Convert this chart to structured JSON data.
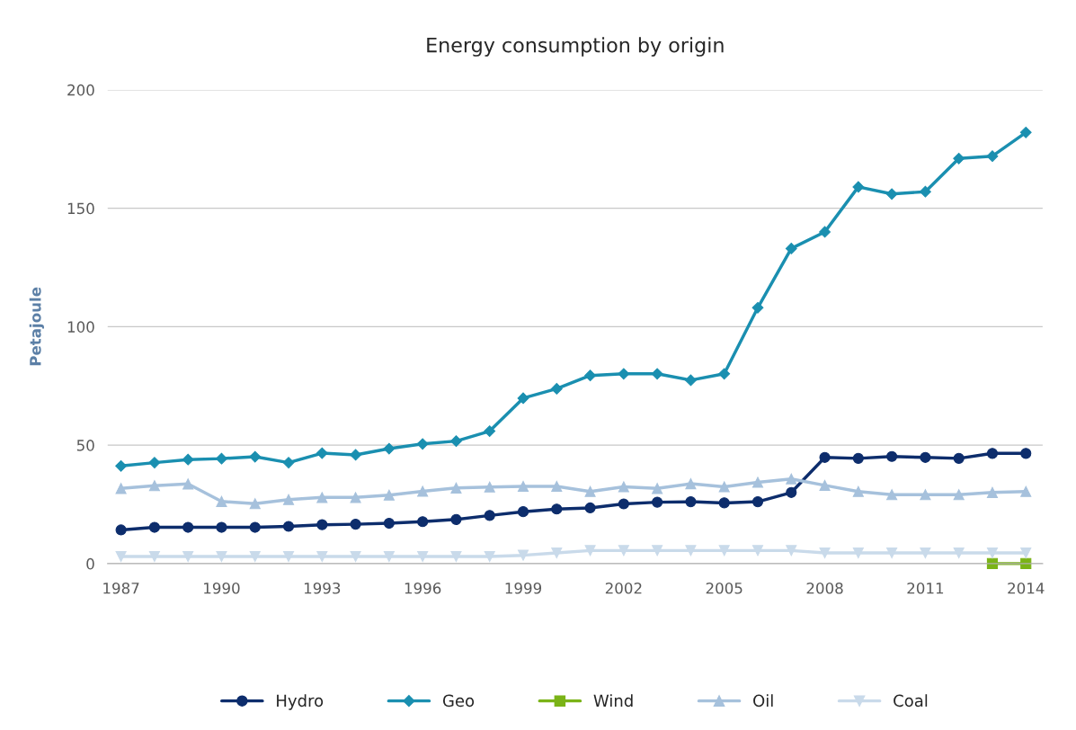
{
  "chart_data": {
    "type": "line",
    "title": "Energy consumption by origin",
    "ylabel": "Petajoule",
    "x": [
      1987,
      1988,
      1989,
      1990,
      1991,
      1992,
      1993,
      1994,
      1995,
      1996,
      1997,
      1998,
      1999,
      2000,
      2001,
      2002,
      2003,
      2004,
      2005,
      2006,
      2007,
      2008,
      2009,
      2010,
      2011,
      2012,
      2013,
      2014
    ],
    "xlim": [
      1986.6,
      2014.5
    ],
    "xticks": [
      1987,
      1990,
      1993,
      1996,
      1999,
      2002,
      2005,
      2008,
      2011,
      2014
    ],
    "ylim": [
      0,
      200
    ],
    "yticks": [
      0,
      50,
      100,
      150,
      200
    ],
    "grid": "y",
    "legend": "bottom",
    "series": [
      {
        "name": "Hydro",
        "color": "#0d2d6c",
        "marker": "circle",
        "values": [
          14.2,
          15.3,
          15.3,
          15.3,
          15.3,
          15.7,
          16.4,
          16.6,
          17.0,
          17.7,
          18.6,
          20.3,
          21.9,
          23.0,
          23.5,
          25.2,
          25.9,
          26.1,
          25.6,
          26.1,
          30.0,
          44.8,
          44.4,
          45.2,
          44.8,
          44.4,
          46.5,
          46.5
        ]
      },
      {
        "name": "Geo",
        "color": "#1a8fb0",
        "marker": "diamond",
        "values": [
          41.2,
          42.6,
          43.9,
          44.3,
          45.1,
          42.6,
          46.6,
          45.9,
          48.5,
          50.5,
          51.7,
          55.9,
          69.8,
          73.8,
          79.4,
          80.1,
          80.1,
          77.4,
          80.1,
          108,
          133,
          140,
          159,
          156,
          157,
          171,
          172,
          182
        ]
      },
      {
        "name": "Wind",
        "color": "#7ab317",
        "marker": "square",
        "values": [
          null,
          null,
          null,
          null,
          null,
          null,
          null,
          null,
          null,
          null,
          null,
          null,
          null,
          null,
          null,
          null,
          null,
          null,
          null,
          null,
          null,
          null,
          null,
          null,
          null,
          null,
          0,
          0
        ]
      },
      {
        "name": "Oil",
        "color": "#a6c1dc",
        "marker": "triangle",
        "values": [
          31.7,
          32.9,
          33.6,
          26.2,
          25.3,
          27.0,
          27.9,
          27.9,
          28.9,
          30.5,
          31.9,
          32.3,
          32.6,
          32.6,
          30.4,
          32.4,
          31.7,
          33.7,
          32.4,
          34.3,
          35.7,
          33.0,
          30.4,
          29.1,
          29.1,
          29.1,
          30.0,
          30.4
        ]
      },
      {
        "name": "Coal",
        "color": "#c9daea",
        "marker": "triangle_down",
        "values": [
          3,
          3,
          3,
          3,
          3,
          3,
          3,
          3,
          3,
          3,
          3,
          3,
          3.5,
          4.5,
          5.5,
          5.5,
          5.5,
          5.5,
          5.5,
          5.5,
          5.5,
          4.5,
          4.5,
          4.5,
          4.5,
          4.5,
          4.5,
          4.5
        ]
      }
    ]
  }
}
